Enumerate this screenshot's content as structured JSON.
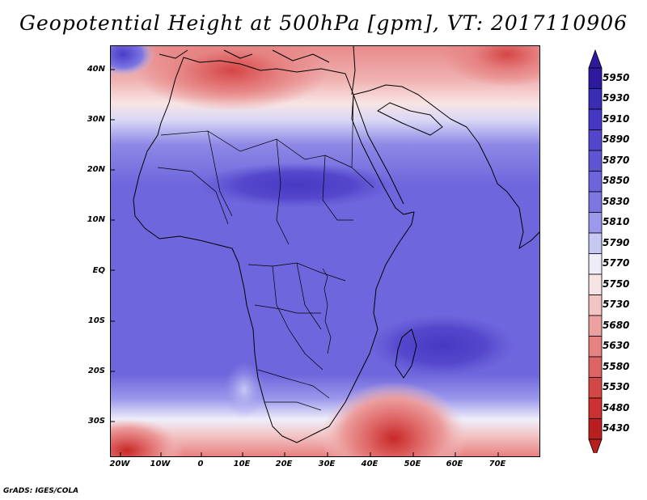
{
  "title": "Geopotential Height at 500hPa [gpm], VT: 2017110906",
  "credit": "GrADS: IGES/COLA",
  "map": {
    "lat_labels": [
      "40N",
      "30N",
      "20N",
      "10N",
      "EQ",
      "10S",
      "20S",
      "30S"
    ],
    "lon_labels": [
      "20W",
      "10W",
      "0",
      "10E",
      "20E",
      "30E",
      "40E",
      "50E",
      "60E",
      "70E"
    ]
  },
  "colorbar": {
    "levels": [
      "5950",
      "5930",
      "5910",
      "5890",
      "5870",
      "5850",
      "5830",
      "5810",
      "5790",
      "5770",
      "5750",
      "5730",
      "5680",
      "5630",
      "5580",
      "5530",
      "5480",
      "5430"
    ],
    "colors": [
      "#2e1aa0",
      "#3a2cb4",
      "#4636c4",
      "#5346cc",
      "#5f55d4",
      "#6c64dc",
      "#7c76e2",
      "#9c98ec",
      "#c8c8f4",
      "#eeeefa",
      "#f6e4e4",
      "#f2c4c4",
      "#eca0a0",
      "#e68282",
      "#de6464",
      "#d64646",
      "#cc3030",
      "#b82020"
    ]
  }
}
